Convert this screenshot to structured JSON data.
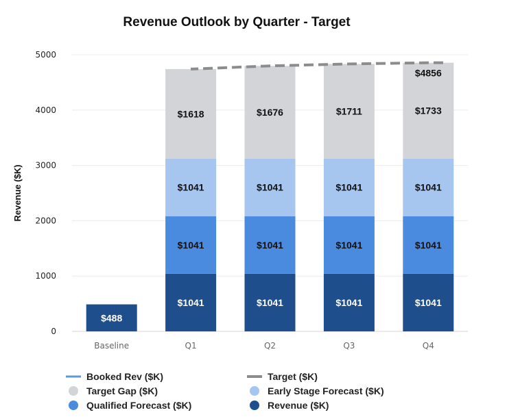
{
  "chart_data": {
    "type": "bar",
    "stacked": true,
    "title": "Revenue Outlook by Quarter - Target",
    "xlabel": "",
    "ylabel": "Revenue ($K)",
    "ylim": [
      0,
      5000
    ],
    "yticks": [
      0,
      1000,
      2000,
      3000,
      4000,
      5000
    ],
    "grid": true,
    "legend_position": "bottom",
    "categories": [
      "Baseline",
      "Q1",
      "Q2",
      "Q3",
      "Q4"
    ],
    "series": [
      {
        "name": "Revenue ($K)",
        "color": "#1f4e8c",
        "label_color": "#ffffff",
        "values": [
          488,
          1041,
          1041,
          1041,
          1041
        ],
        "labels": [
          "$488",
          "$1041",
          "$1041",
          "$1041",
          "$1041"
        ]
      },
      {
        "name": "Qualified Forecast ($K)",
        "color": "#4a8be0",
        "label_color": "#111111",
        "values": [
          0,
          1041,
          1041,
          1041,
          1041
        ],
        "labels": [
          "",
          "$1041",
          "$1041",
          "$1041",
          "$1041"
        ]
      },
      {
        "name": "Early Stage Forecast ($K)",
        "color": "#a6c6f0",
        "label_color": "#111111",
        "values": [
          0,
          1041,
          1041,
          1041,
          1041
        ],
        "labels": [
          "",
          "$1041",
          "$1041",
          "$1041",
          "$1041"
        ]
      },
      {
        "name": "Target Gap ($K)",
        "color": "#d2d4d8",
        "label_color": "#111111",
        "values": [
          0,
          1618,
          1676,
          1711,
          1733
        ],
        "labels": [
          "",
          "$1618",
          "$1676",
          "$1711",
          "$1733"
        ]
      }
    ],
    "target_line": {
      "name": "Target ($K)",
      "color": "#8c8c8c",
      "style": "dashed",
      "values": [
        null,
        4741,
        4799,
        4834,
        4856
      ]
    },
    "booked_line": {
      "name": "Booked Rev ($K)",
      "color": "#5b9bd5"
    },
    "annotations": [
      {
        "category": "Q4",
        "text": "$4856"
      }
    ],
    "legend": [
      {
        "name": "Booked Rev ($K)",
        "kind": "line",
        "color": "#5b9bd5"
      },
      {
        "name": "Target ($K)",
        "kind": "dash",
        "color": "#8c8c8c"
      },
      {
        "name": "Target Gap ($K)",
        "kind": "dot",
        "color": "#d2d4d8"
      },
      {
        "name": "Early Stage Forecast ($K)",
        "kind": "dot",
        "color": "#a6c6f0"
      },
      {
        "name": "Qualified Forecast ($K)",
        "kind": "dot",
        "color": "#4a8be0"
      },
      {
        "name": "Revenue ($K)",
        "kind": "dot",
        "color": "#1f4e8c"
      }
    ]
  }
}
